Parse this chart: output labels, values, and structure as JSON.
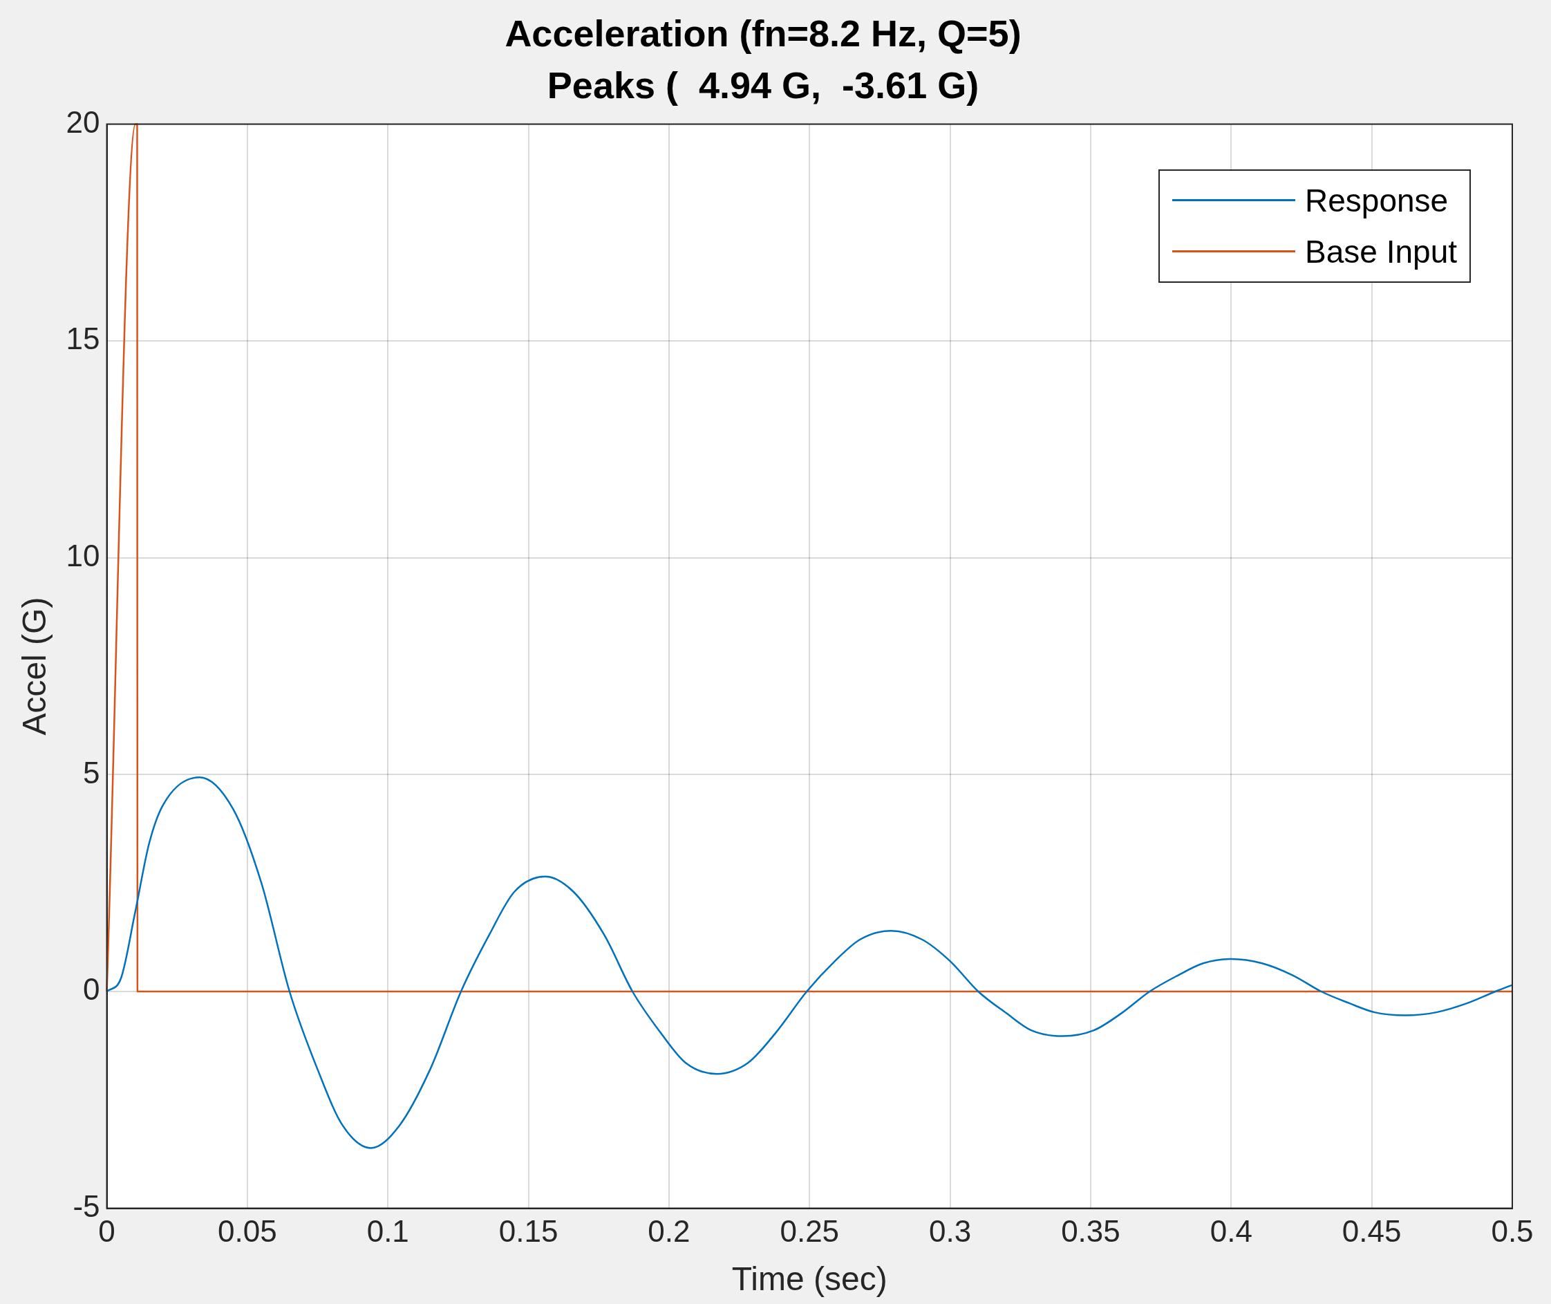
{
  "chart_data": {
    "type": "line",
    "title": "Acceleration (fn=8.2 Hz, Q=5)",
    "subtitle": "Peaks (  4.94 G,  -3.61 G)",
    "xlabel": "Time (sec)",
    "ylabel": "Accel (G)",
    "xlim": [
      0,
      0.5
    ],
    "xticks": [
      0,
      0.05,
      0.1,
      0.15,
      0.2,
      0.25,
      0.3,
      0.35,
      0.4,
      0.45,
      0.5
    ],
    "ylim": [
      -5,
      20
    ],
    "yticks": [
      -5,
      0,
      5,
      10,
      15,
      20
    ],
    "grid": true,
    "legend": "top right",
    "marker": "none",
    "line_style": "solid",
    "series": [
      {
        "name": "Response",
        "color": "#0072bd",
        "x": [
          0,
          0.005,
          0.01,
          0.015,
          0.02,
          0.033,
          0.045,
          0.055,
          0.065,
          0.075,
          0.084,
          0.094,
          0.104,
          0.115,
          0.126,
          0.136,
          0.145,
          0.156,
          0.166,
          0.177,
          0.187,
          0.197,
          0.206,
          0.217,
          0.228,
          0.238,
          0.249,
          0.259,
          0.268,
          0.279,
          0.29,
          0.3,
          0.31,
          0.32,
          0.329,
          0.34,
          0.351,
          0.361,
          0.371,
          0.381,
          0.39,
          0.4,
          0.411,
          0.422,
          0.432,
          0.442,
          0.451,
          0.462,
          0.473,
          0.484,
          0.494,
          0.5
        ],
        "values": [
          0,
          0.3,
          1.8,
          3.4,
          4.3,
          4.94,
          4.2,
          2.5,
          0,
          -1.8,
          -3.1,
          -3.61,
          -3.1,
          -1.8,
          0,
          1.3,
          2.3,
          2.65,
          2.3,
          1.3,
          0,
          -0.95,
          -1.65,
          -1.9,
          -1.65,
          -0.95,
          0,
          0.7,
          1.2,
          1.4,
          1.2,
          0.7,
          0,
          -0.5,
          -0.9,
          -1.03,
          -0.9,
          -0.5,
          0,
          0.37,
          0.65,
          0.75,
          0.65,
          0.37,
          0,
          -0.27,
          -0.48,
          -0.55,
          -0.48,
          -0.27,
          0,
          0.15
        ]
      },
      {
        "name": "Base Input",
        "color": "#d95319",
        "x": [
          0,
          0.0102,
          0.0108,
          0.0109,
          0.5
        ],
        "values": [
          0,
          20,
          20,
          0,
          0
        ]
      }
    ]
  }
}
